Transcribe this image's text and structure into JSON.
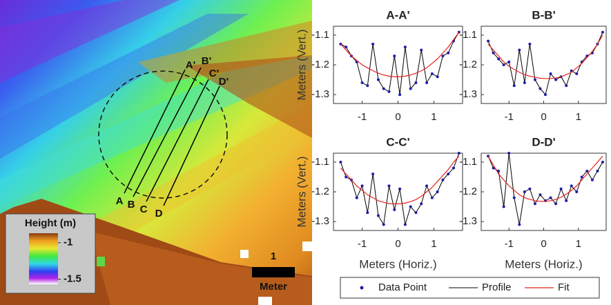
{
  "map": {
    "profiles": [
      {
        "start": "A",
        "end": "A'"
      },
      {
        "start": "B",
        "end": "B'"
      },
      {
        "start": "C",
        "end": "C'"
      },
      {
        "start": "D",
        "end": "D'"
      }
    ],
    "colorbar": {
      "title": "Height (m)",
      "lim": [
        -1.57,
        -0.87
      ],
      "ticks": [
        -1,
        -1.5
      ]
    },
    "scale": {
      "value": 1,
      "unit": "Meter"
    }
  },
  "legend": [
    "Data Point",
    "Profile",
    "Fit"
  ],
  "chart_data": [
    {
      "type": "line",
      "title": "A-A'",
      "y_label": "Meters (Vert.)",
      "x": [
        -1.6,
        -1.45,
        -1.3,
        -1.15,
        -1.0,
        -0.85,
        -0.7,
        -0.55,
        -0.4,
        -0.25,
        -0.1,
        0.05,
        0.2,
        0.35,
        0.5,
        0.65,
        0.8,
        0.95,
        1.1,
        1.25,
        1.4,
        1.55,
        1.7
      ],
      "series": [
        {
          "color": "#1c1ca8",
          "line_color": "#000000",
          "values": [
            -1.13,
            -1.14,
            -1.17,
            -1.19,
            -1.26,
            -1.27,
            -1.13,
            -1.25,
            -1.28,
            -1.29,
            -1.17,
            -1.3,
            -1.14,
            -1.28,
            -1.26,
            -1.15,
            -1.26,
            -1.23,
            -1.24,
            -1.17,
            -1.16,
            -1.12,
            -1.09
          ]
        },
        {
          "color": "#e8231e",
          "values": [
            -1.13,
            -1.15,
            -1.17,
            -1.185,
            -1.2,
            -1.21,
            -1.22,
            -1.228,
            -1.234,
            -1.238,
            -1.24,
            -1.24,
            -1.238,
            -1.234,
            -1.228,
            -1.22,
            -1.21,
            -1.195,
            -1.18,
            -1.16,
            -1.14,
            -1.115,
            -1.09
          ]
        }
      ],
      "xlim": [
        -1.8,
        1.8
      ],
      "xticks": [
        -1,
        0,
        1
      ],
      "ylim": [
        -1.33,
        -1.07
      ],
      "yticks": [
        -1.3,
        -1.2,
        -1.1
      ]
    },
    {
      "type": "line",
      "title": "B-B'",
      "x": [
        -1.6,
        -1.45,
        -1.3,
        -1.15,
        -1.0,
        -0.85,
        -0.7,
        -0.55,
        -0.4,
        -0.25,
        -0.1,
        0.05,
        0.2,
        0.35,
        0.5,
        0.65,
        0.8,
        0.95,
        1.1,
        1.25,
        1.4,
        1.55,
        1.7
      ],
      "series": [
        {
          "color": "#1c1ca8",
          "line_color": "#000000",
          "values": [
            -1.12,
            -1.16,
            -1.18,
            -1.2,
            -1.19,
            -1.27,
            -1.15,
            -1.26,
            -1.13,
            -1.25,
            -1.28,
            -1.3,
            -1.23,
            -1.25,
            -1.24,
            -1.27,
            -1.22,
            -1.23,
            -1.19,
            -1.17,
            -1.16,
            -1.13,
            -1.09
          ]
        },
        {
          "color": "#e8231e",
          "values": [
            -1.13,
            -1.15,
            -1.17,
            -1.19,
            -1.205,
            -1.215,
            -1.225,
            -1.233,
            -1.238,
            -1.242,
            -1.245,
            -1.246,
            -1.246,
            -1.244,
            -1.24,
            -1.233,
            -1.225,
            -1.21,
            -1.195,
            -1.175,
            -1.155,
            -1.13,
            -1.1
          ]
        }
      ],
      "xlim": [
        -1.8,
        1.8
      ],
      "xticks": [
        -1,
        0,
        1
      ],
      "ylim": [
        -1.33,
        -1.07
      ],
      "yticks": [
        -1.3,
        -1.2,
        -1.1
      ]
    },
    {
      "type": "line",
      "title": "C-C'",
      "y_label": "Meters (Vert.)",
      "x_label": "Meters (Horiz.)",
      "x": [
        -1.6,
        -1.45,
        -1.3,
        -1.15,
        -1.0,
        -0.85,
        -0.7,
        -0.55,
        -0.4,
        -0.25,
        -0.1,
        0.05,
        0.2,
        0.35,
        0.5,
        0.65,
        0.8,
        0.95,
        1.1,
        1.25,
        1.4,
        1.55,
        1.7
      ],
      "series": [
        {
          "color": "#1c1ca8",
          "line_color": "#000000",
          "values": [
            -1.1,
            -1.15,
            -1.16,
            -1.22,
            -1.18,
            -1.27,
            -1.14,
            -1.28,
            -1.31,
            -1.18,
            -1.26,
            -1.19,
            -1.31,
            -1.25,
            -1.27,
            -1.24,
            -1.18,
            -1.22,
            -1.2,
            -1.16,
            -1.14,
            -1.12,
            -1.07
          ]
        },
        {
          "color": "#e8231e",
          "values": [
            -1.12,
            -1.14,
            -1.16,
            -1.18,
            -1.195,
            -1.21,
            -1.22,
            -1.23,
            -1.235,
            -1.24,
            -1.24,
            -1.24,
            -1.238,
            -1.233,
            -1.226,
            -1.215,
            -1.2,
            -1.185,
            -1.165,
            -1.145,
            -1.125,
            -1.1,
            -1.08
          ]
        }
      ],
      "xlim": [
        -1.8,
        1.8
      ],
      "xticks": [
        -1,
        0,
        1
      ],
      "ylim": [
        -1.33,
        -1.07
      ],
      "yticks": [
        -1.3,
        -1.2,
        -1.1
      ]
    },
    {
      "type": "line",
      "title": "D-D'",
      "x_label": "Meters (Horiz.)",
      "x": [
        -1.6,
        -1.45,
        -1.3,
        -1.15,
        -1.0,
        -0.85,
        -0.7,
        -0.55,
        -0.4,
        -0.25,
        -0.1,
        0.05,
        0.2,
        0.35,
        0.5,
        0.65,
        0.8,
        0.95,
        1.1,
        1.25,
        1.4,
        1.55,
        1.7
      ],
      "series": [
        {
          "color": "#1c1ca8",
          "line_color": "#000000",
          "values": [
            -1.08,
            -1.12,
            -1.13,
            -1.25,
            -1.07,
            -1.22,
            -1.31,
            -1.2,
            -1.19,
            -1.24,
            -1.21,
            -1.23,
            -1.22,
            -1.24,
            -1.19,
            -1.23,
            -1.18,
            -1.2,
            -1.15,
            -1.13,
            -1.16,
            -1.13,
            -1.1
          ]
        },
        {
          "color": "#e8231e",
          "values": [
            -1.08,
            -1.11,
            -1.14,
            -1.16,
            -1.18,
            -1.195,
            -1.21,
            -1.22,
            -1.225,
            -1.23,
            -1.232,
            -1.232,
            -1.23,
            -1.225,
            -1.218,
            -1.208,
            -1.195,
            -1.18,
            -1.16,
            -1.14,
            -1.12,
            -1.1,
            -1.08
          ]
        }
      ],
      "xlim": [
        -1.8,
        1.8
      ],
      "xticks": [
        -1,
        0,
        1
      ],
      "ylim": [
        -1.33,
        -1.07
      ],
      "yticks": [
        -1.3,
        -1.2,
        -1.1
      ]
    }
  ]
}
